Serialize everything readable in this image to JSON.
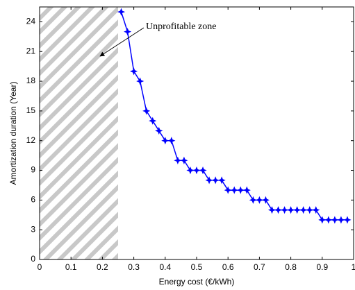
{
  "chart_data": {
    "type": "line",
    "x_label": "Energy cost (€/kWh)",
    "y_label": "Amortization duration (Year)",
    "annotation": "Unprofitable zone",
    "shaded_region": {
      "x": [
        0,
        0.25
      ]
    },
    "x": [
      0.26,
      0.28,
      0.3,
      0.32,
      0.34,
      0.36,
      0.38,
      0.4,
      0.42,
      0.44,
      0.46,
      0.48,
      0.5,
      0.52,
      0.54,
      0.56,
      0.58,
      0.6,
      0.62,
      0.64,
      0.66,
      0.68,
      0.7,
      0.72,
      0.74,
      0.76,
      0.78,
      0.8,
      0.82,
      0.84,
      0.86,
      0.88,
      0.9,
      0.92,
      0.94,
      0.96,
      0.98
    ],
    "series": [
      {
        "color": "#0000ff",
        "values": [
          25,
          23,
          19,
          18,
          15,
          14,
          13,
          12,
          12,
          10,
          10,
          9,
          9,
          9,
          8,
          8,
          8,
          7,
          7,
          7,
          7,
          6,
          6,
          6,
          5,
          5,
          5,
          5,
          5,
          5,
          5,
          5,
          4,
          4,
          4,
          4,
          4
        ]
      }
    ],
    "xlim": [
      0,
      1
    ],
    "xticks": [
      0,
      0.1,
      0.2,
      0.3,
      0.4,
      0.5,
      0.6,
      0.7,
      0.8,
      0.9,
      1
    ],
    "ylim": [
      0,
      25.5
    ],
    "yticks": [
      0,
      3,
      6,
      9,
      12,
      15,
      18,
      21,
      24
    ],
    "grid": false
  }
}
